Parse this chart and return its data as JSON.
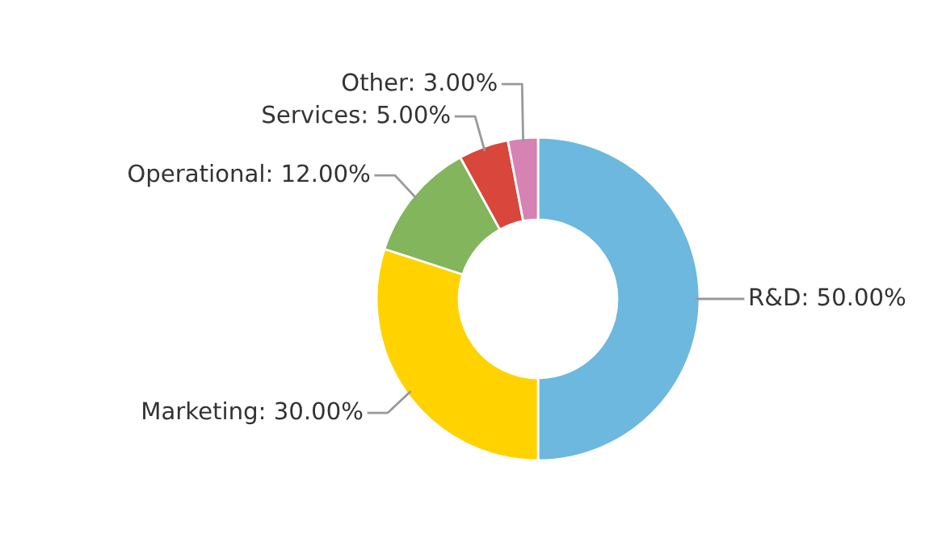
{
  "chart_data": {
    "type": "donut",
    "categories": [
      "R&D",
      "Marketing",
      "Operational",
      "Services",
      "Other"
    ],
    "values": [
      50,
      30,
      12,
      5,
      3
    ],
    "value_labels": [
      "50.00%",
      "30.00%",
      "12.00%",
      "5.00%",
      "3.00%"
    ],
    "colors": [
      "#6cb8de",
      "#ffd200",
      "#82b55c",
      "#d9463c",
      "#d682b3"
    ],
    "legend": false
  }
}
